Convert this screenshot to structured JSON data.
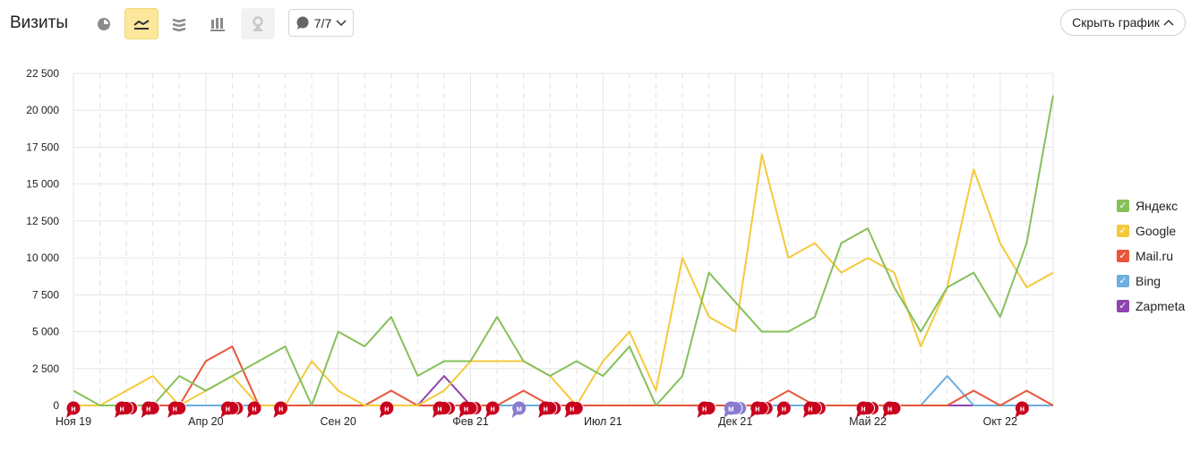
{
  "header": {
    "title": "Визиты",
    "dropdown_label": "7/7",
    "hide_button": "Скрыть график"
  },
  "toolbar": [
    {
      "icon": "pie-chart-icon",
      "state": "normal"
    },
    {
      "icon": "line-chart-icon",
      "state": "active"
    },
    {
      "icon": "area-chart-icon",
      "state": "normal"
    },
    {
      "icon": "bar-chart-icon",
      "state": "normal"
    },
    {
      "icon": "map-pin-icon",
      "state": "disabled"
    }
  ],
  "chart_data": {
    "type": "line",
    "x": [
      "2019-11",
      "2019-12",
      "2020-01",
      "2020-02",
      "2020-03",
      "2020-04",
      "2020-05",
      "2020-06",
      "2020-07",
      "2020-08",
      "2020-09",
      "2020-10",
      "2020-11",
      "2020-12",
      "2021-01",
      "2021-02",
      "2021-03",
      "2021-04",
      "2021-05",
      "2021-06",
      "2021-07",
      "2021-08",
      "2021-09",
      "2021-10",
      "2021-11",
      "2021-12",
      "2022-01",
      "2022-02",
      "2022-03",
      "2022-04",
      "2022-05",
      "2022-06",
      "2022-07",
      "2022-08",
      "2022-09",
      "2022-10",
      "2022-11",
      "2022-12"
    ],
    "x_tick_labels": [
      {
        "x": "2019-11",
        "label": "Ноя 19"
      },
      {
        "x": "2020-04",
        "label": "Апр 20"
      },
      {
        "x": "2020-09",
        "label": "Сен 20"
      },
      {
        "x": "2021-02",
        "label": "Фев 21"
      },
      {
        "x": "2021-07",
        "label": "Июл 21"
      },
      {
        "x": "2021-12",
        "label": "Дек 21"
      },
      {
        "x": "2022-05",
        "label": "Май 22"
      },
      {
        "x": "2022-10",
        "label": "Окт 22"
      }
    ],
    "y_ticks": [
      "0",
      "2 500",
      "5 000",
      "7 500",
      "10 000",
      "12 500",
      "15 000",
      "17 500",
      "20 000",
      "22 500"
    ],
    "ylim": [
      0,
      22500
    ],
    "grid": true,
    "legend_position": "right",
    "series": [
      {
        "name": "Яндекс",
        "color": "#86c05a",
        "values": [
          1000,
          0,
          0,
          0,
          2000,
          1000,
          2000,
          3000,
          4000,
          0,
          5000,
          4000,
          6000,
          2000,
          3000,
          3000,
          6000,
          3000,
          2000,
          3000,
          2000,
          4000,
          0,
          2000,
          9000,
          7000,
          5000,
          5000,
          6000,
          11000,
          12000,
          8000,
          5000,
          8000,
          9000,
          6000,
          11000,
          21000
        ]
      },
      {
        "name": "Google",
        "color": "#f4c93c",
        "values": [
          0,
          0,
          1000,
          2000,
          0,
          1000,
          2000,
          0,
          0,
          3000,
          1000,
          0,
          0,
          0,
          1000,
          3000,
          3000,
          3000,
          2000,
          0,
          3000,
          5000,
          1000,
          10000,
          6000,
          5000,
          17000,
          10000,
          11000,
          9000,
          10000,
          9000,
          4000,
          8000,
          16000,
          11000,
          8000,
          9000
        ]
      },
      {
        "name": "Mail.ru",
        "color": "#e8553a",
        "values": [
          0,
          0,
          0,
          0,
          0,
          3000,
          4000,
          0,
          0,
          0,
          0,
          0,
          1000,
          0,
          0,
          0,
          0,
          1000,
          0,
          0,
          0,
          0,
          0,
          0,
          0,
          0,
          0,
          1000,
          0,
          0,
          0,
          0,
          0,
          0,
          1000,
          0,
          1000,
          0
        ]
      },
      {
        "name": "Bing",
        "color": "#6aafdf",
        "values": [
          0,
          0,
          0,
          0,
          0,
          0,
          0,
          0,
          0,
          0,
          0,
          0,
          0,
          0,
          0,
          0,
          0,
          0,
          0,
          0,
          0,
          0,
          0,
          0,
          0,
          0,
          0,
          0,
          0,
          0,
          0,
          0,
          0,
          2000,
          0,
          0,
          0,
          0
        ]
      },
      {
        "name": "Zapmeta",
        "color": "#8e44ad",
        "values": [
          0,
          0,
          0,
          0,
          0,
          0,
          0,
          0,
          0,
          0,
          0,
          0,
          0,
          0,
          2000,
          0,
          0,
          0,
          0,
          0,
          0,
          0,
          0,
          0,
          0,
          0,
          0,
          0,
          0,
          0,
          0,
          0,
          0,
          0,
          0,
          0,
          0,
          0
        ]
      }
    ],
    "annotations": [
      {
        "x": "2019-11",
        "letter": "н",
        "count": 1
      },
      {
        "x": "2020-01",
        "letter": "н",
        "count": 3
      },
      {
        "x": "2020-02",
        "letter": "н",
        "count": 2
      },
      {
        "x": "2020-03",
        "letter": "н",
        "count": 2
      },
      {
        "x": "2020-05",
        "letter": "н",
        "count": 3
      },
      {
        "x": "2020-06",
        "letter": "н",
        "count": 1
      },
      {
        "x": "2020-07",
        "letter": "н",
        "count": 1
      },
      {
        "x": "2020-11",
        "letter": "н",
        "count": 1
      },
      {
        "x": "2021-01",
        "letter": "н",
        "count": 3
      },
      {
        "x": "2021-02",
        "letter": "н",
        "count": 3
      },
      {
        "x": "2021-03",
        "letter": "н",
        "count": 1
      },
      {
        "x": "2021-04",
        "letter": "м",
        "count": 1
      },
      {
        "x": "2021-05",
        "letter": "н",
        "count": 3
      },
      {
        "x": "2021-06",
        "letter": "н",
        "count": 2
      },
      {
        "x": "2021-11",
        "letter": "н",
        "count": 2
      },
      {
        "x": "2021-12",
        "letter": "м",
        "count": 3
      },
      {
        "x": "2022-01",
        "letter": "н",
        "count": 3
      },
      {
        "x": "2022-02",
        "letter": "н",
        "count": 1
      },
      {
        "x": "2022-03",
        "letter": "н",
        "count": 3
      },
      {
        "x": "2022-05",
        "letter": "н",
        "count": 3
      },
      {
        "x": "2022-06",
        "letter": "н",
        "count": 2
      },
      {
        "x": "2022-11",
        "letter": "н",
        "count": 1
      }
    ]
  }
}
